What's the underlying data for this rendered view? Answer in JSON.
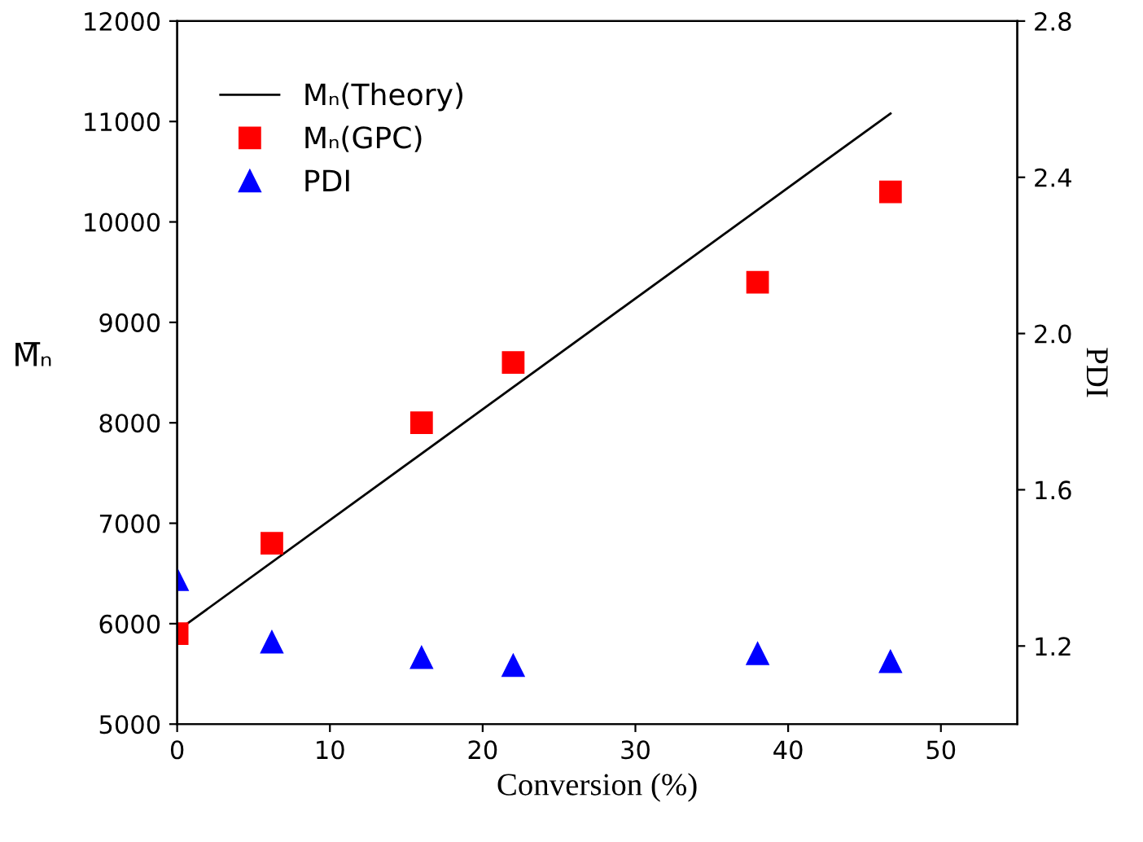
{
  "chart_data": {
    "type": "scatter",
    "xlabel": "Conversion (%)",
    "ylabel": "M̅ₙ",
    "y2label": "PDI",
    "xlim": [
      0,
      55
    ],
    "xticks": [
      0,
      10,
      20,
      30,
      40,
      50
    ],
    "ylim": [
      5000,
      12000
    ],
    "yticks": [
      5000,
      6000,
      7000,
      8000,
      9000,
      10000,
      11000,
      12000
    ],
    "y2lim": [
      1.0,
      2.8
    ],
    "y2ticks": [
      {
        "value": 1.2,
        "label": "1.2"
      },
      {
        "value": 1.6,
        "label": "1.6"
      },
      {
        "value": 2.0,
        "label": "2.0"
      },
      {
        "value": 2.4,
        "label": "2.4"
      },
      {
        "value": 2.8,
        "label": "2.8"
      }
    ],
    "legend": "top left",
    "grid": false,
    "series": [
      {
        "name": "Mₙ(Theory)",
        "type": "line",
        "color": "#000000",
        "marker": "none",
        "line_style": "solid",
        "x": [
          0.2,
          46.7
        ],
        "values": [
          5950,
          11080
        ]
      },
      {
        "name": "Mₙ(GPC)",
        "color": "#ff0000",
        "marker": "square",
        "x": [
          0,
          6.2,
          16,
          22,
          38,
          46.7
        ],
        "values": [
          5900,
          6800,
          8000,
          8600,
          9400,
          10300
        ]
      },
      {
        "name": "PDI",
        "color": "#0000ff",
        "marker": "triangle",
        "axis": "y2",
        "x": [
          0,
          6.2,
          16,
          22,
          38,
          46.7
        ],
        "values": [
          1.37,
          1.21,
          1.17,
          1.15,
          1.18,
          1.16
        ]
      }
    ]
  }
}
